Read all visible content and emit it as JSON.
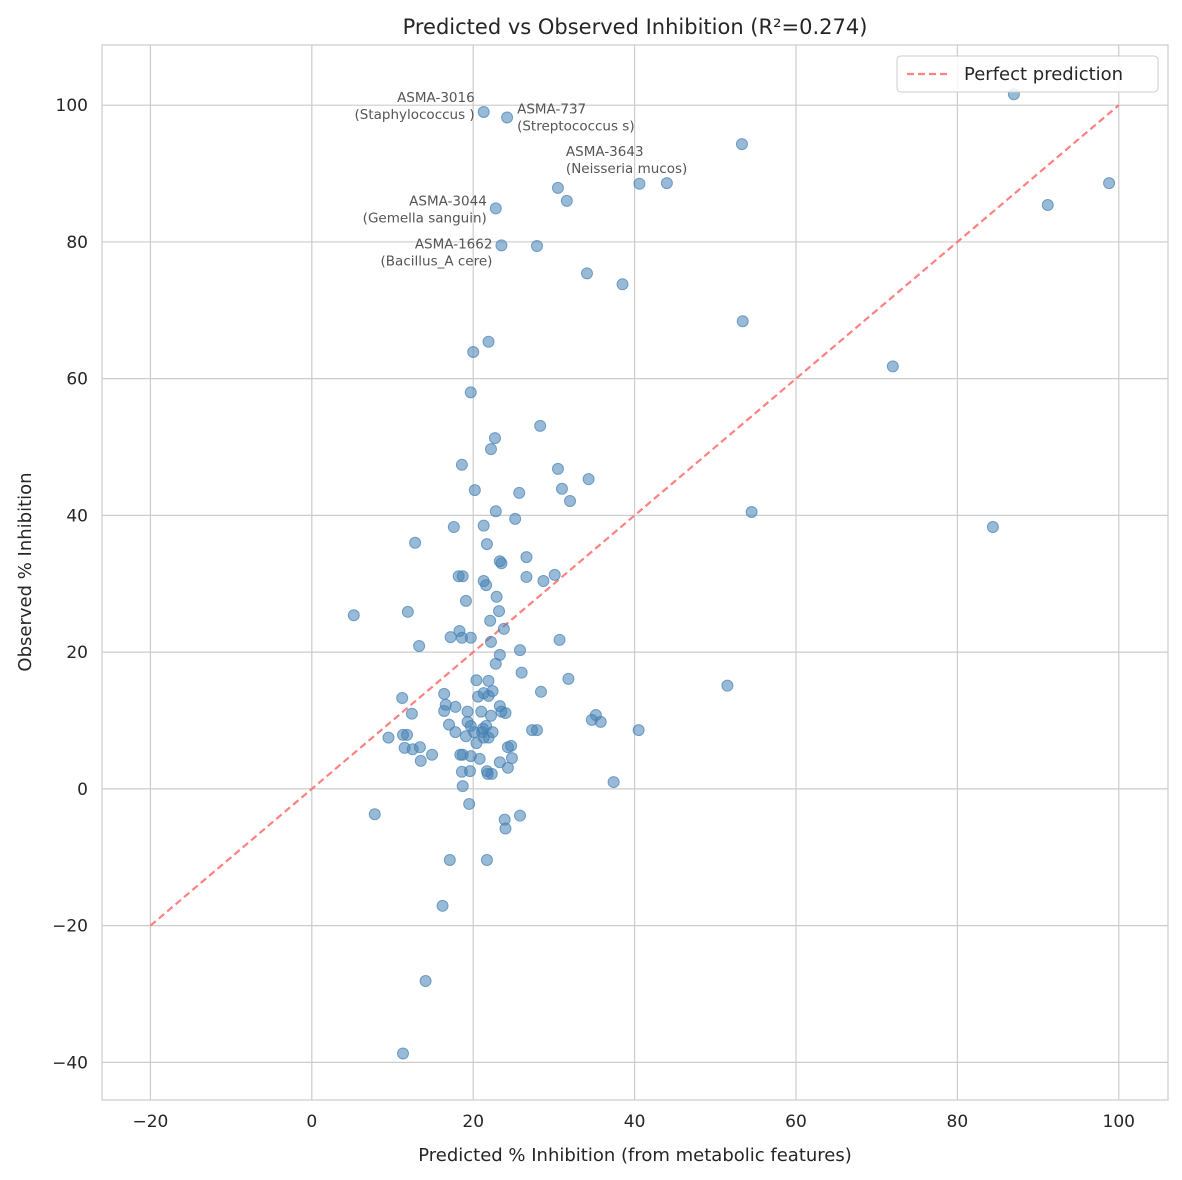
{
  "chart_data": {
    "type": "scatter",
    "title": "Predicted vs Observed Inhibition (R²=0.274)",
    "xlabel": "Predicted % Inhibition (from metabolic features)",
    "ylabel": "Observed % Inhibition",
    "xlim": [
      -26,
      106.1
    ],
    "ylim": [
      -45.5,
      108.8
    ],
    "xticks": [
      -20,
      0,
      20,
      40,
      60,
      80,
      100
    ],
    "yticks": [
      -40,
      -20,
      0,
      20,
      40,
      60,
      80,
      100
    ],
    "xtick_labels": [
      "−20",
      "0",
      "20",
      "40",
      "60",
      "80",
      "100"
    ],
    "ytick_labels": [
      "−40",
      "−20",
      "0",
      "20",
      "40",
      "60",
      "80",
      "100"
    ],
    "grid": true,
    "legend": {
      "position": "top-right",
      "entries": [
        "Perfect prediction"
      ]
    },
    "colors": {
      "points": "#4682b4",
      "reference_line": "#ff6b6b"
    },
    "reference_line": {
      "name": "Perfect prediction",
      "x": [
        -20,
        100
      ],
      "y": [
        -20,
        100
      ],
      "style": "dashed"
    },
    "points": [
      [
        87.0,
        101.6
      ],
      [
        21.3,
        99.0
      ],
      [
        24.2,
        98.2
      ],
      [
        53.3,
        94.3
      ],
      [
        30.5,
        87.9
      ],
      [
        40.6,
        88.5
      ],
      [
        44.0,
        88.6
      ],
      [
        31.6,
        86.0
      ],
      [
        98.8,
        88.6
      ],
      [
        91.2,
        85.4
      ],
      [
        22.8,
        84.9
      ],
      [
        23.5,
        79.5
      ],
      [
        27.9,
        79.4
      ],
      [
        34.1,
        75.4
      ],
      [
        38.5,
        73.8
      ],
      [
        53.4,
        68.4
      ],
      [
        21.9,
        65.4
      ],
      [
        72.0,
        61.8
      ],
      [
        20.0,
        63.9
      ],
      [
        19.7,
        58.0
      ],
      [
        28.3,
        53.1
      ],
      [
        22.7,
        51.3
      ],
      [
        22.2,
        49.7
      ],
      [
        18.6,
        47.4
      ],
      [
        30.5,
        46.8
      ],
      [
        34.3,
        45.3
      ],
      [
        20.2,
        43.7
      ],
      [
        25.7,
        43.3
      ],
      [
        31.0,
        43.9
      ],
      [
        32.0,
        42.1
      ],
      [
        22.8,
        40.6
      ],
      [
        54.5,
        40.5
      ],
      [
        25.2,
        39.5
      ],
      [
        84.4,
        38.3
      ],
      [
        17.6,
        38.3
      ],
      [
        21.3,
        38.5
      ],
      [
        12.8,
        36.0
      ],
      [
        21.7,
        35.8
      ],
      [
        26.6,
        33.9
      ],
      [
        23.3,
        33.3
      ],
      [
        23.5,
        33.0
      ],
      [
        18.2,
        31.1
      ],
      [
        18.7,
        31.1
      ],
      [
        21.3,
        30.4
      ],
      [
        21.6,
        29.8
      ],
      [
        26.6,
        31.0
      ],
      [
        28.7,
        30.4
      ],
      [
        30.1,
        31.3
      ],
      [
        19.1,
        27.5
      ],
      [
        22.9,
        28.1
      ],
      [
        23.2,
        26.0
      ],
      [
        5.2,
        25.4
      ],
      [
        11.9,
        25.9
      ],
      [
        22.1,
        24.6
      ],
      [
        23.8,
        23.4
      ],
      [
        18.3,
        23.1
      ],
      [
        17.2,
        22.2
      ],
      [
        18.6,
        22.1
      ],
      [
        19.7,
        22.1
      ],
      [
        22.2,
        21.5
      ],
      [
        30.7,
        21.8
      ],
      [
        13.3,
        20.9
      ],
      [
        25.8,
        20.3
      ],
      [
        23.3,
        19.6
      ],
      [
        22.8,
        18.3
      ],
      [
        26.0,
        17.0
      ],
      [
        31.8,
        16.1
      ],
      [
        20.4,
        15.9
      ],
      [
        21.9,
        15.8
      ],
      [
        51.5,
        15.1
      ],
      [
        16.4,
        13.9
      ],
      [
        28.4,
        14.2
      ],
      [
        21.3,
        14.0
      ],
      [
        22.4,
        14.3
      ],
      [
        20.6,
        13.5
      ],
      [
        21.9,
        13.6
      ],
      [
        11.2,
        13.3
      ],
      [
        16.6,
        12.3
      ],
      [
        17.8,
        12.0
      ],
      [
        23.3,
        12.1
      ],
      [
        16.4,
        11.4
      ],
      [
        19.3,
        11.3
      ],
      [
        21.0,
        11.3
      ],
      [
        23.5,
        11.3
      ],
      [
        24.0,
        11.1
      ],
      [
        12.4,
        11.0
      ],
      [
        22.2,
        10.7
      ],
      [
        35.2,
        10.8
      ],
      [
        34.7,
        10.1
      ],
      [
        35.8,
        9.8
      ],
      [
        17.0,
        9.4
      ],
      [
        19.3,
        9.8
      ],
      [
        19.7,
        9.2
      ],
      [
        21.6,
        9.2
      ],
      [
        21.2,
        8.8
      ],
      [
        21.1,
        8.3
      ],
      [
        17.8,
        8.3
      ],
      [
        20.1,
        8.3
      ],
      [
        22.4,
        8.3
      ],
      [
        27.3,
        8.6
      ],
      [
        27.9,
        8.6
      ],
      [
        40.5,
        8.6
      ],
      [
        11.3,
        7.9
      ],
      [
        11.8,
        7.9
      ],
      [
        19.1,
        7.7
      ],
      [
        21.3,
        7.5
      ],
      [
        21.9,
        7.5
      ],
      [
        9.5,
        7.5
      ],
      [
        20.4,
        6.7
      ],
      [
        11.5,
        6.0
      ],
      [
        12.5,
        5.8
      ],
      [
        13.4,
        6.1
      ],
      [
        24.3,
        6.1
      ],
      [
        24.7,
        6.3
      ],
      [
        14.9,
        5.0
      ],
      [
        18.4,
        5.0
      ],
      [
        18.7,
        5.0
      ],
      [
        19.7,
        4.8
      ],
      [
        20.8,
        4.4
      ],
      [
        24.8,
        4.5
      ],
      [
        13.5,
        4.1
      ],
      [
        23.3,
        3.9
      ],
      [
        24.3,
        3.1
      ],
      [
        21.7,
        2.6
      ],
      [
        18.6,
        2.5
      ],
      [
        19.6,
        2.6
      ],
      [
        21.8,
        2.2
      ],
      [
        22.3,
        2.2
      ],
      [
        37.4,
        1.0
      ],
      [
        18.7,
        0.4
      ],
      [
        7.8,
        -3.7
      ],
      [
        25.8,
        -3.9
      ],
      [
        23.9,
        -4.5
      ],
      [
        19.5,
        -2.2
      ],
      [
        24.0,
        -5.8
      ],
      [
        17.1,
        -10.4
      ],
      [
        21.7,
        -10.4
      ],
      [
        16.2,
        -17.1
      ],
      [
        14.1,
        -28.1
      ],
      [
        11.3,
        -38.7
      ]
    ],
    "annotations": [
      {
        "x": 21.3,
        "y": 99.0,
        "lines": [
          "ASMA-3016",
          "(Staphylococcus )"
        ]
      },
      {
        "x": 24.2,
        "y": 98.2,
        "lines": [
          "ASMA-737",
          "(Streptococcus s)"
        ]
      },
      {
        "x": 30.5,
        "y": 87.9,
        "lines": [
          "ASMA-3643",
          "(Neisseria mucos)"
        ]
      },
      {
        "x": 22.8,
        "y": 84.9,
        "lines": [
          "ASMA-3044",
          "(Gemella sanguin)"
        ]
      },
      {
        "x": 23.5,
        "y": 79.5,
        "lines": [
          "ASMA-1662",
          "(Bacillus_A cere)"
        ]
      }
    ]
  }
}
